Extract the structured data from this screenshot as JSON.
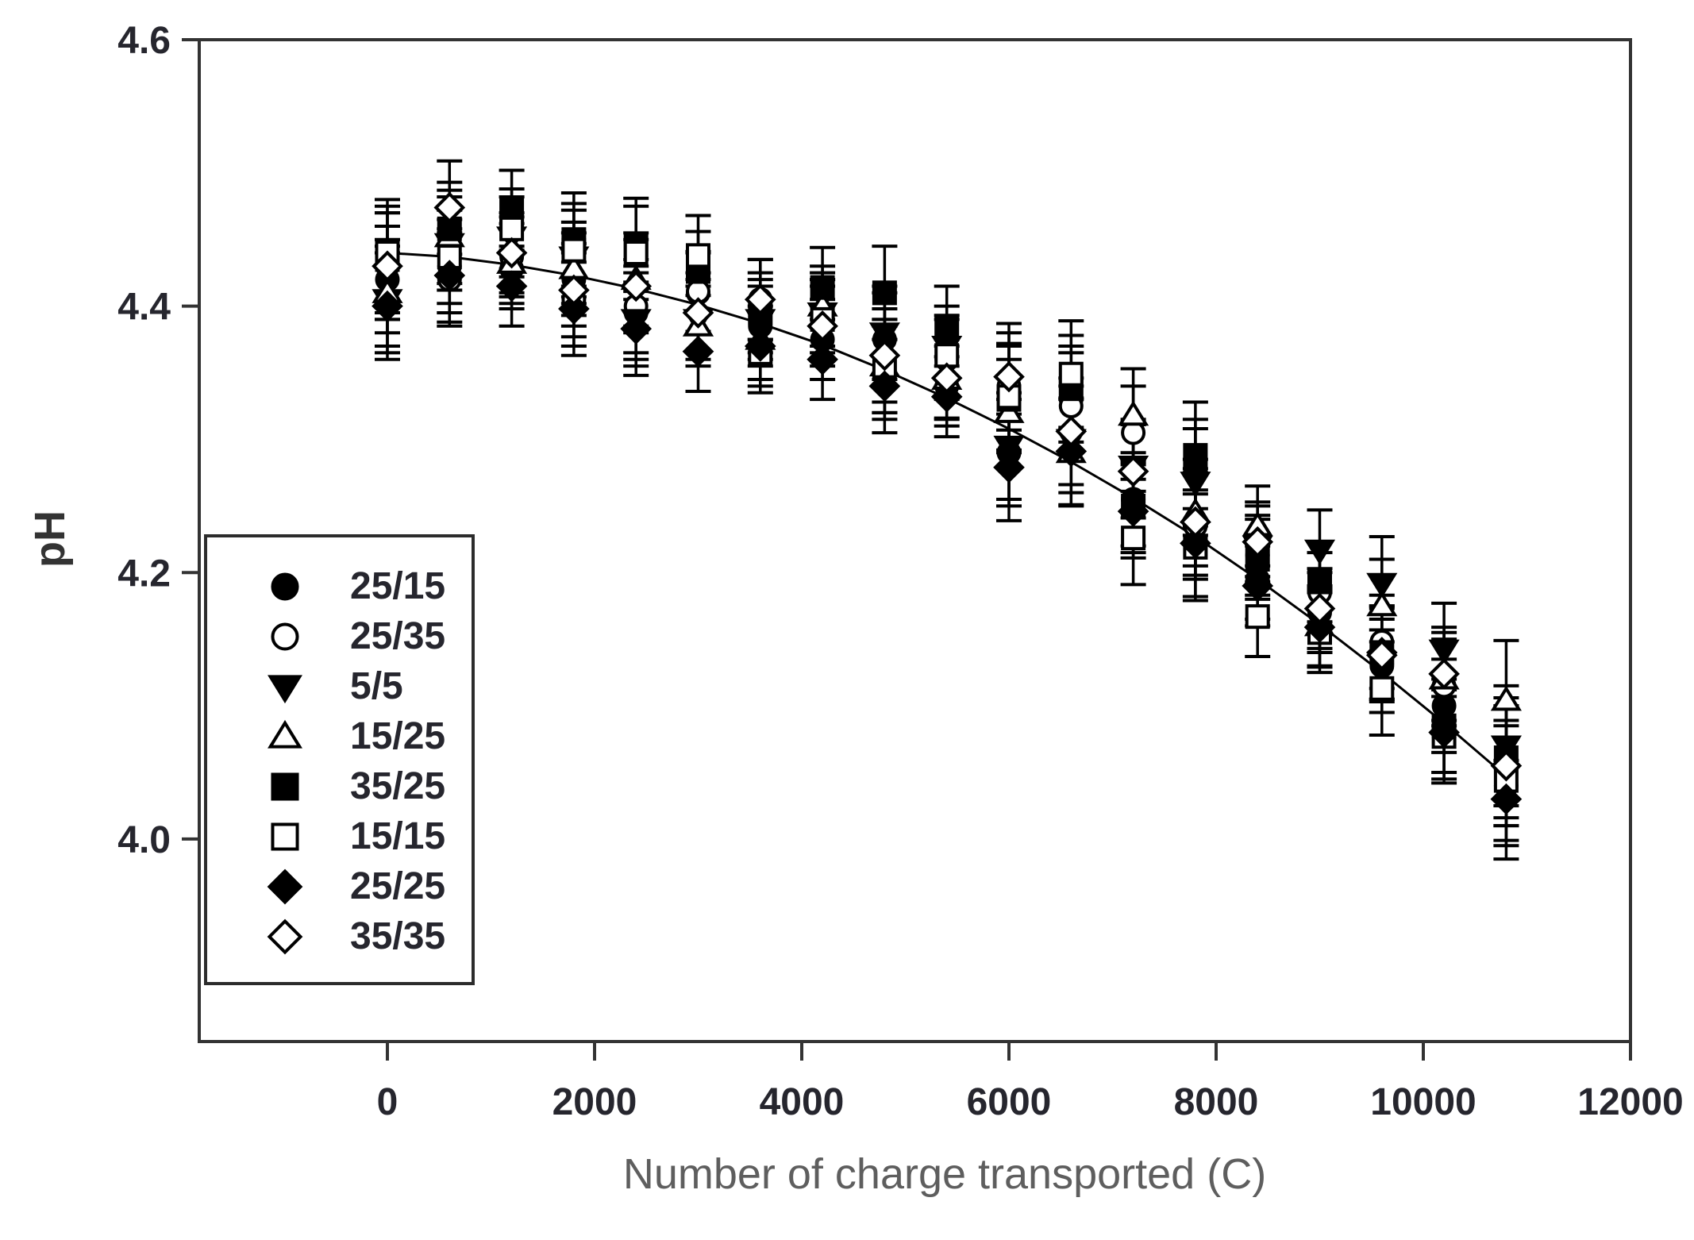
{
  "figure": {
    "background": "#ffffff"
  },
  "chart_data": {
    "type": "scatter",
    "title": "",
    "xlabel": "Number of charge transported (C)",
    "ylabel": "pH",
    "grid": false,
    "legend_position": "middle-left inside plot, boxed",
    "x_axis": {
      "ticks": [
        0,
        2000,
        4000,
        6000,
        8000,
        10000,
        12000
      ],
      "range": [
        -1816,
        12000
      ]
    },
    "y_axis": {
      "ticks": [
        4.6,
        4.4,
        4.2,
        4.0
      ],
      "range": [
        3.848,
        4.6
      ]
    },
    "x": [
      0,
      600,
      1200,
      1800,
      2400,
      3000,
      3600,
      4200,
      4800,
      5400,
      6000,
      6600,
      7200,
      7800,
      8400,
      9000,
      9600,
      10200,
      10800
    ],
    "error_bars": [
      0.04,
      0.035,
      0.03,
      0.035,
      0.035,
      0.03,
      0.03,
      0.03,
      0.035,
      0.03,
      0.04,
      0.04,
      0.035,
      0.04,
      0.03,
      0.03,
      0.035,
      0.035,
      0.045
    ],
    "series": [
      {
        "label": "25/15",
        "marker": "filled-circle",
        "values": [
          4.42,
          4.43,
          4.428,
          4.42,
          4.395,
          4.41,
          4.385,
          4.375,
          4.375,
          4.34,
          4.29,
          4.33,
          4.255,
          4.275,
          4.195,
          4.17,
          4.13,
          4.1,
          4.04
        ]
      },
      {
        "label": "25/35",
        "marker": "open-circle",
        "values": [
          4.43,
          4.42,
          4.437,
          4.405,
          4.4,
          4.411,
          4.405,
          4.39,
          4.35,
          4.36,
          4.34,
          4.325,
          4.305,
          4.235,
          4.213,
          4.185,
          4.148,
          4.115,
          4.055
        ]
      },
      {
        "label": "5/5",
        "marker": "filled-triangle-down",
        "values": [
          4.405,
          4.447,
          4.452,
          4.437,
          4.39,
          4.39,
          4.39,
          4.395,
          4.38,
          4.37,
          4.295,
          4.3,
          4.28,
          4.268,
          4.22,
          4.217,
          4.192,
          4.142,
          4.07
        ]
      },
      {
        "label": "15/25",
        "marker": "open-triangle-up",
        "values": [
          4.41,
          4.452,
          4.432,
          4.428,
          4.42,
          4.385,
          4.375,
          4.4,
          4.355,
          4.345,
          4.32,
          4.29,
          4.318,
          4.245,
          4.235,
          4.16,
          4.175,
          4.12,
          4.104
        ]
      },
      {
        "label": "35/25",
        "marker": "filled-square",
        "values": [
          4.435,
          4.458,
          4.472,
          4.45,
          4.446,
          4.426,
          4.395,
          4.414,
          4.41,
          4.385,
          4.33,
          4.338,
          4.25,
          4.288,
          4.21,
          4.193,
          4.14,
          4.085,
          4.061
        ]
      },
      {
        "label": "15/15",
        "marker": "open-square",
        "values": [
          4.44,
          4.437,
          4.458,
          4.442,
          4.44,
          4.438,
          4.365,
          4.39,
          4.355,
          4.363,
          4.332,
          4.349,
          4.226,
          4.219,
          4.167,
          4.155,
          4.113,
          4.077,
          4.044
        ]
      },
      {
        "label": "25/25",
        "marker": "filled-diamond",
        "values": [
          4.4,
          4.423,
          4.415,
          4.398,
          4.383,
          4.366,
          4.37,
          4.36,
          4.34,
          4.332,
          4.279,
          4.291,
          4.246,
          4.222,
          4.19,
          4.159,
          4.14,
          4.08,
          4.03
        ]
      },
      {
        "label": "35/35",
        "marker": "open-diamond",
        "values": [
          4.43,
          4.474,
          4.44,
          4.412,
          4.415,
          4.395,
          4.405,
          4.385,
          4.363,
          4.346,
          4.347,
          4.306,
          4.276,
          4.238,
          4.223,
          4.173,
          4.138,
          4.124,
          4.055
        ]
      }
    ],
    "trend_line": {
      "style": "solid",
      "color": "#000000",
      "points": [
        [
          0,
          4.44
        ],
        [
          600,
          4.437
        ],
        [
          1200,
          4.431
        ],
        [
          1800,
          4.423
        ],
        [
          2400,
          4.413
        ],
        [
          3000,
          4.401
        ],
        [
          3600,
          4.387
        ],
        [
          4200,
          4.371
        ],
        [
          4800,
          4.352
        ],
        [
          5400,
          4.331
        ],
        [
          6000,
          4.308
        ],
        [
          6600,
          4.283
        ],
        [
          7200,
          4.256
        ],
        [
          7800,
          4.227
        ],
        [
          8400,
          4.195
        ],
        [
          9000,
          4.161
        ],
        [
          9600,
          4.125
        ],
        [
          10200,
          4.087
        ],
        [
          10800,
          4.047
        ]
      ]
    },
    "colors": {
      "marker": "#000000",
      "axis": "#333333",
      "tick_label": "#26262e",
      "axis_title": "#5e5e5e",
      "y_title": "#333333"
    }
  }
}
